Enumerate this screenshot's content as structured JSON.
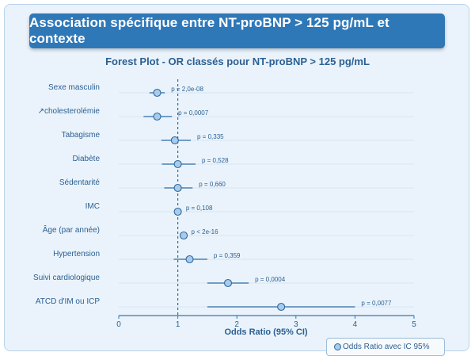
{
  "page": {
    "banner_title": "Association spécifique entre NT-proBNP > 125 pg/mL et contexte"
  },
  "chart_data": {
    "type": "forest",
    "title": "Forest Plot - OR classés pour NT-proBNP > 125 pg/mL",
    "xlabel": "Odds Ratio (95% CI)",
    "xlim": [
      0,
      5
    ],
    "xticks": [
      "0",
      "1",
      "2",
      "3",
      "4",
      "5"
    ],
    "reference_line": 1,
    "legend": {
      "label": "Odds Ratio avec IC 95%",
      "position": "bottom-right"
    },
    "rows": [
      {
        "label": "Sexe masculin",
        "or": 0.65,
        "lo": 0.52,
        "hi": 0.78,
        "p": "p = 2,0e-08"
      },
      {
        "label": "↗cholesterolémie",
        "or": 0.65,
        "lo": 0.42,
        "hi": 0.9,
        "p": "p = 0,0007"
      },
      {
        "label": "Tabagisme",
        "or": 0.95,
        "lo": 0.72,
        "hi": 1.22,
        "p": "p = 0,335"
      },
      {
        "label": "Diabète",
        "or": 1.0,
        "lo": 0.73,
        "hi": 1.3,
        "p": "p = 0,528"
      },
      {
        "label": "Sédentarité",
        "or": 1.0,
        "lo": 0.77,
        "hi": 1.25,
        "p": "p = 0,660"
      },
      {
        "label": "IMC",
        "or": 1.0,
        "lo": 0.97,
        "hi": 1.03,
        "p": "p = 0,108"
      },
      {
        "label": "Âge (par année)",
        "or": 1.1,
        "lo": 1.08,
        "hi": 1.12,
        "p": "p < 2e-16"
      },
      {
        "label": "Hypertension",
        "or": 1.2,
        "lo": 0.93,
        "hi": 1.5,
        "p": "p = 0,359"
      },
      {
        "label": "Suivi cardiologique",
        "or": 1.85,
        "lo": 1.5,
        "hi": 2.2,
        "p": "p = 0,0004"
      },
      {
        "label": "ATCD d'IM ou ICP",
        "or": 2.75,
        "lo": 1.5,
        "hi": 4.0,
        "p": "p = 0,0077"
      }
    ],
    "colors": {
      "point_fill": "#a9cbe8",
      "point_stroke": "#2b6aa6",
      "ci_line": "#2b6aa6",
      "reference_line": "#2b6aa6",
      "axis": "#2f78b8",
      "label_text": "#2b5f93",
      "grid": "#d6e6f3"
    }
  }
}
